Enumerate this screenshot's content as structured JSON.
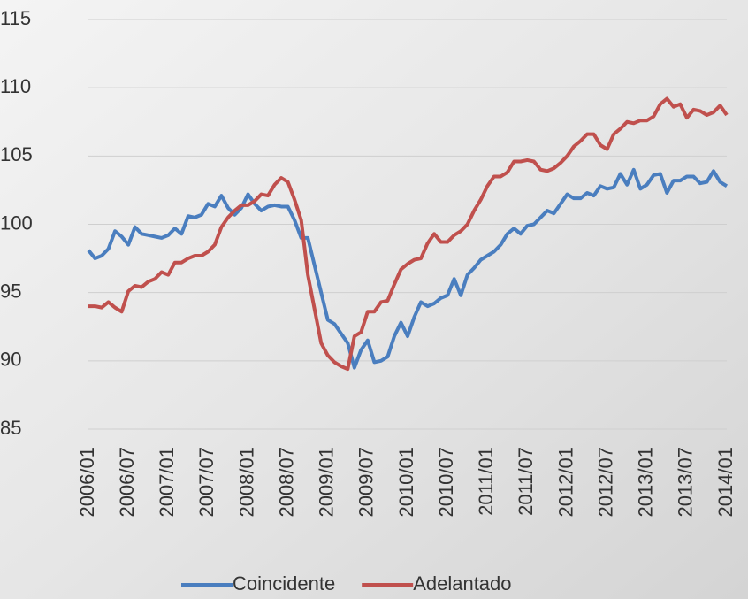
{
  "chart_data": {
    "type": "line",
    "categories": [
      "2006/01",
      null,
      null,
      null,
      null,
      null,
      "2006/07",
      null,
      null,
      null,
      null,
      null,
      "2007/01",
      null,
      null,
      null,
      null,
      null,
      "2007/07",
      null,
      null,
      null,
      null,
      null,
      "2008/01",
      null,
      null,
      null,
      null,
      null,
      "2008/07",
      null,
      null,
      null,
      null,
      null,
      "2009/01",
      null,
      null,
      null,
      null,
      null,
      "2009/07",
      null,
      null,
      null,
      null,
      null,
      "2010/01",
      null,
      null,
      null,
      null,
      null,
      "2010/07",
      null,
      null,
      null,
      null,
      null,
      "2011/01",
      null,
      null,
      null,
      null,
      null,
      "2011/07",
      null,
      null,
      null,
      null,
      null,
      "2012/01",
      null,
      null,
      null,
      null,
      null,
      "2012/07",
      null,
      null,
      null,
      null,
      null,
      "2013/01",
      null,
      null,
      null,
      null,
      null,
      "2013/07",
      null,
      null,
      null,
      null,
      null,
      "2014/01"
    ],
    "series": [
      {
        "name": "Coincidente",
        "color": "#4a7ebf",
        "values": [
          98.1,
          97.5,
          97.7,
          98.2,
          99.5,
          99.1,
          98.5,
          99.8,
          99.3,
          99.2,
          99.1,
          99.0,
          99.2,
          99.7,
          99.3,
          100.6,
          100.5,
          100.7,
          101.5,
          101.3,
          102.1,
          101.2,
          100.7,
          101.2,
          102.2,
          101.5,
          101.0,
          101.3,
          101.4,
          101.3,
          101.3,
          100.3,
          99.0,
          99.0,
          97.0,
          95.0,
          93.0,
          92.7,
          92.0,
          91.3,
          89.5,
          90.8,
          91.5,
          89.9,
          90.0,
          90.3,
          91.8,
          92.8,
          91.8,
          93.2,
          94.3,
          94.0,
          94.2,
          94.6,
          94.8,
          96.0,
          94.8,
          96.3,
          96.8,
          97.4,
          97.7,
          98.0,
          98.5,
          99.3,
          99.7,
          99.3,
          99.9,
          100.0,
          100.5,
          101.0,
          100.8,
          101.5,
          102.2,
          101.9,
          101.9,
          102.3,
          102.1,
          102.8,
          102.6,
          102.7,
          103.7,
          102.9,
          104.0,
          102.6,
          102.9,
          103.6,
          103.7,
          102.3,
          103.2,
          103.2,
          103.5,
          103.5,
          103.0,
          103.1,
          103.9,
          103.1,
          102.8
        ]
      },
      {
        "name": "Adelantado",
        "color": "#c0504d",
        "values": [
          94.0,
          94.0,
          93.9,
          94.3,
          93.9,
          93.6,
          95.1,
          95.5,
          95.4,
          95.8,
          96.0,
          96.5,
          96.3,
          97.2,
          97.2,
          97.5,
          97.7,
          97.7,
          98.0,
          98.5,
          99.8,
          100.5,
          101.0,
          101.4,
          101.4,
          101.7,
          102.2,
          102.1,
          102.9,
          103.4,
          103.1,
          101.8,
          100.3,
          96.3,
          93.8,
          91.3,
          90.4,
          89.9,
          89.6,
          89.4,
          91.8,
          92.1,
          93.6,
          93.6,
          94.3,
          94.4,
          95.6,
          96.7,
          97.1,
          97.4,
          97.5,
          98.6,
          99.3,
          98.7,
          98.7,
          99.2,
          99.5,
          100.0,
          101.0,
          101.8,
          102.8,
          103.5,
          103.5,
          103.8,
          104.6,
          104.6,
          104.7,
          104.6,
          104.0,
          103.9,
          104.1,
          104.5,
          105.0,
          105.7,
          106.1,
          106.6,
          106.6,
          105.8,
          105.5,
          106.6,
          107.0,
          107.5,
          107.4,
          107.6,
          107.6,
          107.9,
          108.8,
          109.2,
          108.6,
          108.8,
          107.8,
          108.4,
          108.3,
          108.0,
          108.2,
          108.7,
          108.0
        ]
      }
    ],
    "ylim": [
      85,
      115
    ],
    "yticks": [
      85,
      90,
      95,
      100,
      105,
      110,
      115
    ],
    "grid": true,
    "legend": "bottom"
  }
}
